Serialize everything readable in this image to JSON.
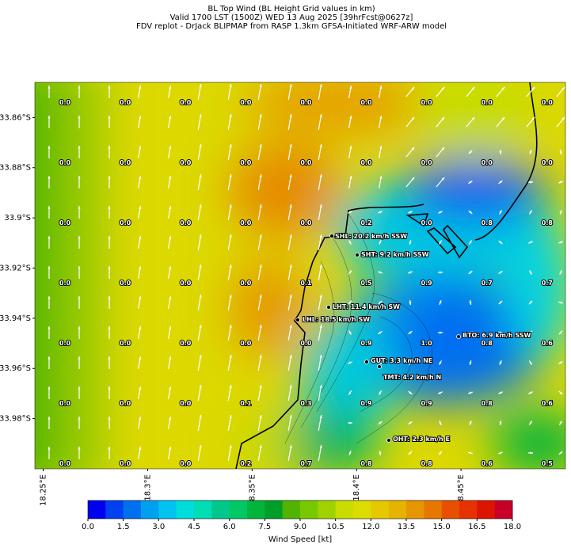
{
  "header": {
    "title_lines": [
      "BL Top Wind (BL Height Grid values in km)",
      "Valid 1700 LST (1500Z) WED 13 Aug 2025 [39hrFcst@0627z]",
      "FDV replot - DrJack BLIPMAP from RASP 1.3km GFSA-Initiated WRF-ARW model"
    ]
  },
  "map": {
    "xlim": [
      18.246,
      18.5
    ],
    "ylim": [
      -34.0,
      -33.846
    ],
    "xticks": [
      {
        "value": 18.25,
        "label": "18.25°E"
      },
      {
        "value": 18.3,
        "label": "18.3°E"
      },
      {
        "value": 18.35,
        "label": "18.35°E"
      },
      {
        "value": 18.4,
        "label": "18.4°E"
      },
      {
        "value": 18.45,
        "label": "18.45°E"
      }
    ],
    "yticks": [
      {
        "value": -33.86,
        "label": "33.86°S"
      },
      {
        "value": -33.88,
        "label": "33.88°S"
      },
      {
        "value": -33.9,
        "label": "33.9°S"
      },
      {
        "value": -33.92,
        "label": "33.92°S"
      },
      {
        "value": -33.94,
        "label": "33.94°S"
      },
      {
        "value": -33.96,
        "label": "33.96°S"
      },
      {
        "value": -33.98,
        "label": "33.98°S"
      }
    ],
    "grid_values": [
      [
        "0.0",
        "0.0",
        "0.0",
        "0.0",
        "0.0",
        "0.0",
        "0.0",
        "0.0",
        "0.0"
      ],
      [
        "0.0",
        "0.0",
        "0.0",
        "0.0",
        "0.0",
        "0.0",
        "0.0",
        "0.0",
        "0.0"
      ],
      [
        "0.0",
        "0.0",
        "0.0",
        "0.0",
        "0.0",
        "0.2",
        "0.0",
        "0.8",
        "0.8"
      ],
      [
        "0.0",
        "0.0",
        "0.0",
        "0.0",
        "0.1",
        "0.5",
        "0.9",
        "0.7",
        "0.7"
      ],
      [
        "0.0",
        "0.0",
        "0.0",
        "0.0",
        "0.0",
        "0.9",
        "1.0",
        "0.8",
        "0.6"
      ],
      [
        "0.0",
        "0.0",
        "0.0",
        "0.1",
        "0.3",
        "0.9",
        "0.9",
        "0.8",
        "0.6"
      ],
      [
        "0.0",
        "0.0",
        "0.0",
        "0.2",
        "0.7",
        "0.8",
        "0.8",
        "0.6",
        "0.5"
      ]
    ],
    "stations": [
      "SHL: 20.2 km/h SSW",
      "SHT: 9.2 km/h SSW",
      "LHT: 11.4 km/h SW",
      "LHL: 18.5 km/h SW",
      "BTO: 6.9 km/h SSW",
      "GUT: 3.3 km/h NE",
      "TMT: 4.2 km/h N",
      "OHT: 2.3 km/h E"
    ]
  },
  "colorbar": {
    "label": "Wind Speed [kt]",
    "lim": [
      0,
      18
    ],
    "ticks": [
      {
        "value": 0,
        "label": "0.0"
      },
      {
        "value": 1.5,
        "label": "1.5"
      },
      {
        "value": 3,
        "label": "3.0"
      },
      {
        "value": 4.5,
        "label": "4.5"
      },
      {
        "value": 6,
        "label": "6.0"
      },
      {
        "value": 7.5,
        "label": "7.5"
      },
      {
        "value": 9,
        "label": "9.0"
      },
      {
        "value": 10.5,
        "label": "10.5"
      },
      {
        "value": 12,
        "label": "12.0"
      },
      {
        "value": 13.5,
        "label": "13.5"
      },
      {
        "value": 15,
        "label": "15.0"
      },
      {
        "value": 16.5,
        "label": "16.5"
      },
      {
        "value": 18,
        "label": "18.0"
      }
    ],
    "colors": [
      "#0000f0",
      "#0040f0",
      "#0070f0",
      "#00a0f0",
      "#00c4f0",
      "#00dcdc",
      "#00dcb4",
      "#00c88c",
      "#00c864",
      "#00b43c",
      "#00a028",
      "#50b400",
      "#78c800",
      "#a0d200",
      "#c8dc00",
      "#dcdc00",
      "#e6c800",
      "#e6b400",
      "#e69600",
      "#e67800",
      "#e65000",
      "#e63200",
      "#dc1400",
      "#c80028"
    ]
  }
}
